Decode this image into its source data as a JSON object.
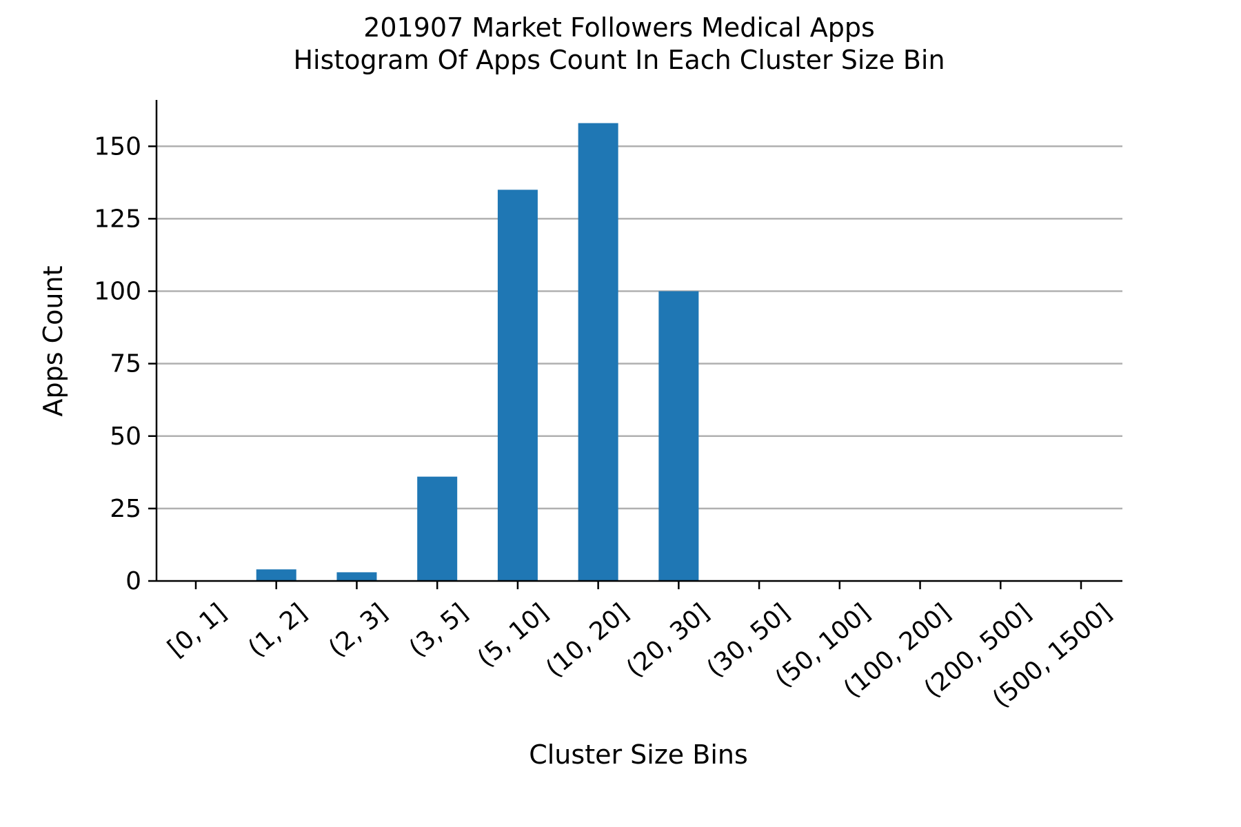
{
  "chart_data": {
    "type": "bar",
    "title": "201907 Market Followers Medical Apps",
    "subtitle": "Histogram Of Apps Count In Each Cluster Size Bin",
    "xlabel": "Cluster Size Bins",
    "ylabel": "Apps Count",
    "categories": [
      "[0, 1]",
      "(1, 2]",
      "(2, 3]",
      "(3, 5]",
      "(5, 10]",
      "(10, 20]",
      "(20, 30]",
      "(30, 50]",
      "(50, 100]",
      "(100, 200]",
      "(200, 500]",
      "(500, 1500]"
    ],
    "values": [
      0,
      4,
      3,
      36,
      135,
      158,
      100,
      0,
      0,
      0,
      0,
      0
    ],
    "ylim": [
      0,
      166
    ],
    "yticks": [
      0,
      25,
      50,
      75,
      100,
      125,
      150
    ],
    "grid": true,
    "grid_axis": "y",
    "bar_color": "#1f77b4",
    "grid_color": "#b0b0b0",
    "axis_color": "#000000"
  }
}
